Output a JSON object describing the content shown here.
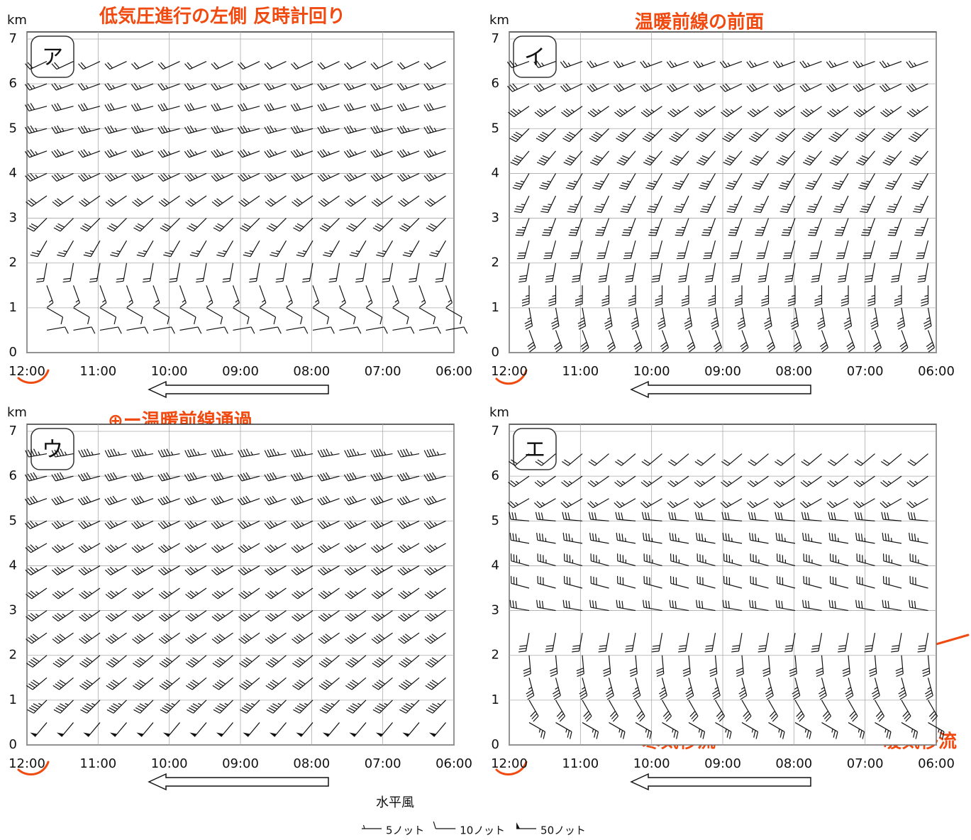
{
  "chart_data": [
    {
      "type": "wind-barb",
      "title": "ア",
      "ylabel": "km",
      "ylim": [
        0,
        7
      ],
      "yticks": [
        0,
        1,
        2,
        3,
        4,
        5,
        6,
        7
      ],
      "xticks": [
        "12:00",
        "11:00",
        "10:00",
        "09:00",
        "08:00",
        "07:00",
        "06:00"
      ],
      "grid": true,
      "levels": [
        0.5,
        1,
        1.5,
        2,
        2.5,
        3,
        3.5,
        4,
        4.5,
        5,
        5.5,
        6,
        6.5
      ],
      "direction": [
        80,
        120,
        160,
        190,
        210,
        225,
        235,
        245,
        250,
        255,
        255,
        250,
        245
      ],
      "speed": [
        10,
        10,
        15,
        20,
        25,
        30,
        30,
        35,
        35,
        35,
        30,
        25,
        20
      ]
    },
    {
      "type": "wind-barb",
      "title": "イ",
      "ylabel": "km",
      "ylim": [
        0,
        7
      ],
      "yticks": [
        0,
        1,
        2,
        3,
        4,
        5,
        6,
        7
      ],
      "xticks": [
        "12:00",
        "11:00",
        "10:00",
        "09:00",
        "08:00",
        "07:00",
        "06:00"
      ],
      "grid": true,
      "levels": [
        0.5,
        1,
        1.5,
        2,
        2.5,
        3,
        3.5,
        4,
        4.5,
        5,
        5.5,
        6,
        6.5
      ],
      "direction": [
        160,
        170,
        180,
        190,
        195,
        200,
        205,
        210,
        220,
        225,
        235,
        245,
        250
      ],
      "speed": [
        30,
        35,
        35,
        30,
        30,
        35,
        35,
        35,
        40,
        40,
        35,
        30,
        25
      ]
    },
    {
      "type": "wind-barb",
      "title": "ウ",
      "ylabel": "km",
      "ylim": [
        0,
        7
      ],
      "yticks": [
        0,
        1,
        2,
        3,
        4,
        5,
        6,
        7
      ],
      "xticks": [
        "12:00",
        "11:00",
        "10:00",
        "09:00",
        "08:00",
        "07:00",
        "06:00"
      ],
      "grid": true,
      "levels": [
        0.5,
        1,
        1.5,
        2,
        2.5,
        3,
        3.5,
        4,
        4.5,
        5,
        5.5,
        6,
        6.5
      ],
      "direction": [
        220,
        225,
        230,
        230,
        235,
        235,
        235,
        240,
        240,
        245,
        250,
        255,
        260
      ],
      "speed": [
        50,
        45,
        40,
        40,
        40,
        35,
        35,
        35,
        35,
        35,
        40,
        40,
        45
      ]
    },
    {
      "type": "wind-barb",
      "title": "エ",
      "ylabel": "km",
      "ylim": [
        0,
        7
      ],
      "yticks": [
        0,
        1,
        2,
        3,
        4,
        5,
        6,
        7
      ],
      "xticks": [
        "12:00",
        "11:00",
        "10:00",
        "09:00",
        "08:00",
        "07:00",
        "06:00"
      ],
      "grid": true,
      "levels": [
        0.5,
        1,
        1.5,
        2,
        2.5,
        3,
        3.5,
        4,
        4.5,
        5,
        5.5,
        6,
        6.5
      ],
      "direction": [
        120,
        150,
        165,
        175,
        190,
        280,
        285,
        285,
        280,
        275,
        240,
        235,
        230
      ],
      "speed": [
        25,
        30,
        35,
        30,
        30,
        30,
        30,
        35,
        35,
        30,
        25,
        25,
        20
      ]
    }
  ],
  "caption": "水平風",
  "legend": [
    {
      "label": "5ノット",
      "speed": 5
    },
    {
      "label": "10ノット",
      "speed": 10
    },
    {
      "label": "50ノット",
      "speed": 50
    }
  ],
  "annotations": [
    "低気圧進行の左側 反時計回り",
    "温暖前線の前面",
    "⊕ー温暖前線通過",
    "寒気移流",
    "暖気移流"
  ]
}
